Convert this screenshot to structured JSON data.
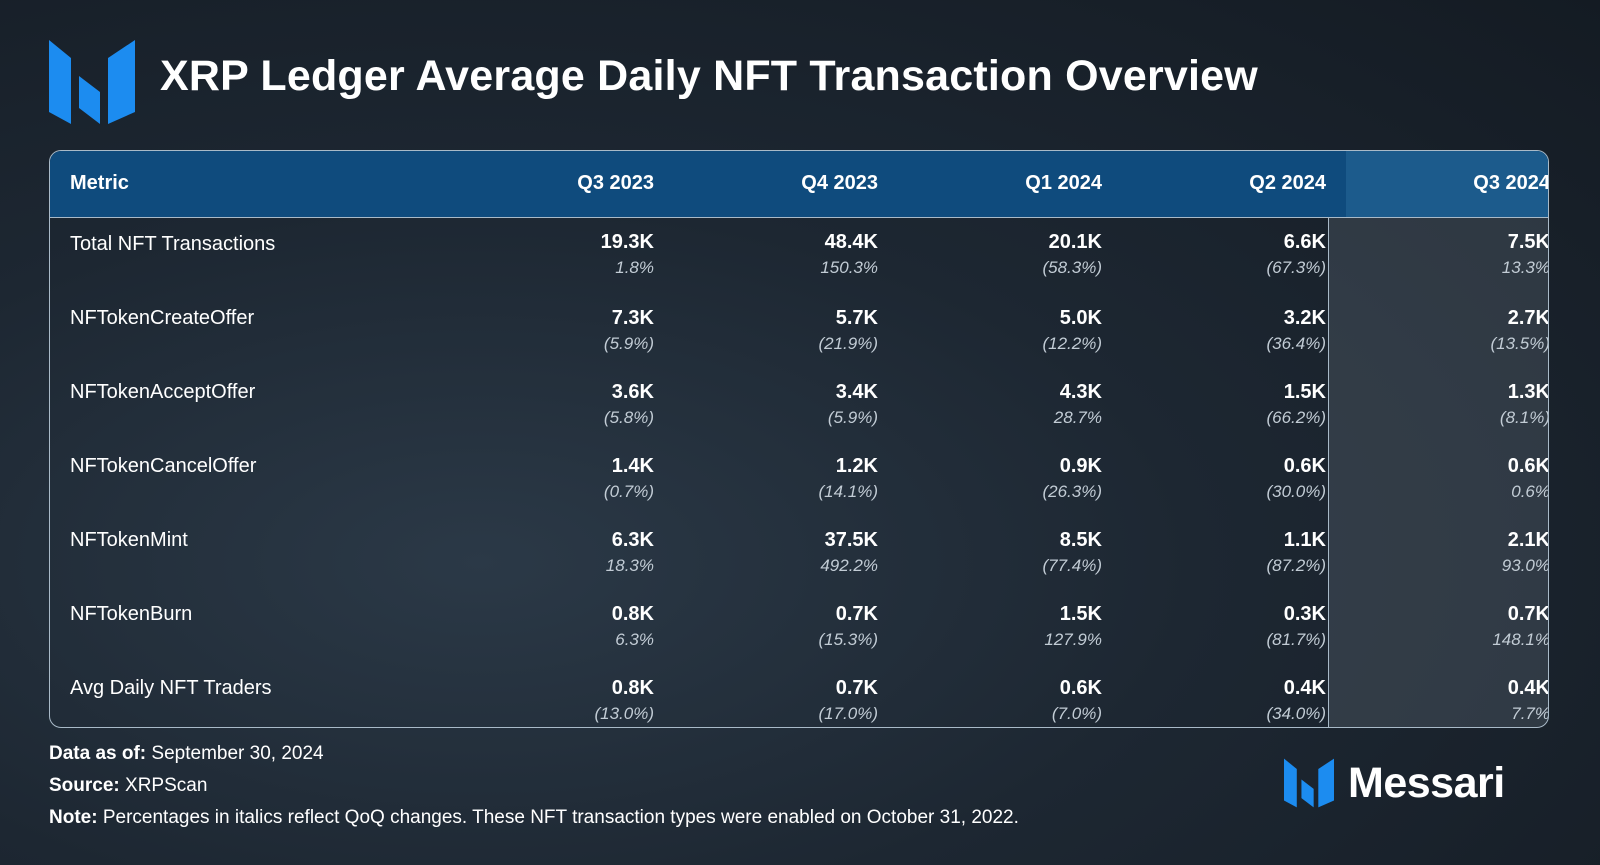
{
  "title": "XRP Ledger Average Daily NFT Transaction Overview",
  "brand": {
    "name": "Messari",
    "color": "#1c8cf0",
    "icon": "messari-logo-icon"
  },
  "chart_data": {
    "type": "table",
    "title": "XRP Ledger Average Daily NFT Transaction Overview",
    "columns": [
      "Metric",
      "Q3 2023",
      "Q4 2023",
      "Q1 2024",
      "Q2 2024",
      "Q3 2024"
    ],
    "highlighted_column": "Q3 2024",
    "rows": [
      {
        "metric": "Total NFT Transactions",
        "values": [
          "19.3K",
          "48.4K",
          "20.1K",
          "6.6K",
          "7.5K"
        ],
        "changes": [
          "1.8%",
          "150.3%",
          "(58.3%)",
          "(67.3%)",
          "13.3%"
        ]
      },
      {
        "metric": "NFTokenCreateOffer",
        "values": [
          "7.3K",
          "5.7K",
          "5.0K",
          "3.2K",
          "2.7K"
        ],
        "changes": [
          "(5.9%)",
          "(21.9%)",
          "(12.2%)",
          "(36.4%)",
          "(13.5%)"
        ]
      },
      {
        "metric": "NFTokenAcceptOffer",
        "values": [
          "3.6K",
          "3.4K",
          "4.3K",
          "1.5K",
          "1.3K"
        ],
        "changes": [
          "(5.8%)",
          "(5.9%)",
          "28.7%",
          "(66.2%)",
          "(8.1%)"
        ]
      },
      {
        "metric": "NFTokenCancelOffer",
        "values": [
          "1.4K",
          "1.2K",
          "0.9K",
          "0.6K",
          "0.6K"
        ],
        "changes": [
          "(0.7%)",
          "(14.1%)",
          "(26.3%)",
          "(30.0%)",
          "0.6%"
        ]
      },
      {
        "metric": "NFTokenMint",
        "values": [
          "6.3K",
          "37.5K",
          "8.5K",
          "1.1K",
          "2.1K"
        ],
        "changes": [
          "18.3%",
          "492.2%",
          "(77.4%)",
          "(87.2%)",
          "93.0%"
        ]
      },
      {
        "metric": "NFTokenBurn",
        "values": [
          "0.8K",
          "0.7K",
          "1.5K",
          "0.3K",
          "0.7K"
        ],
        "changes": [
          "6.3%",
          "(15.3%)",
          "127.9%",
          "(81.7%)",
          "148.1%"
        ]
      },
      {
        "metric": "Avg Daily NFT Traders",
        "values": [
          "0.8K",
          "0.7K",
          "0.6K",
          "0.4K",
          "0.4K"
        ],
        "changes": [
          "(13.0%)",
          "(17.0%)",
          "(7.0%)",
          "(34.0%)",
          "7.7%"
        ]
      }
    ]
  },
  "footer": {
    "data_as_of_label": "Data as of:",
    "data_as_of_value": " September 30, 2024",
    "source_label": "Source:",
    "source_value": " XRPScan",
    "note_label": "Note:",
    "note_value": " Percentages in italics reflect QoQ changes. These NFT transaction types were enabled on October 31, 2022."
  }
}
